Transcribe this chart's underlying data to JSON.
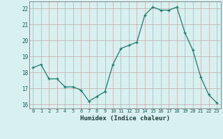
{
  "x": [
    0,
    1,
    2,
    3,
    4,
    5,
    6,
    7,
    8,
    9,
    10,
    11,
    12,
    13,
    14,
    15,
    16,
    17,
    18,
    19,
    20,
    21,
    22,
    23
  ],
  "y": [
    18.3,
    18.5,
    17.6,
    17.6,
    17.1,
    17.1,
    16.9,
    16.2,
    16.5,
    16.8,
    18.5,
    19.5,
    19.7,
    19.9,
    21.6,
    22.1,
    21.9,
    21.9,
    22.1,
    20.5,
    19.4,
    17.7,
    16.6,
    16.1
  ],
  "line_color": "#1a7a6e",
  "marker": "+",
  "marker_size": 3,
  "bg_color": "#d8f0f0",
  "grid_major_color": "#c8dede",
  "grid_minor_color": "#e0ecec",
  "xlabel": "Humidex (Indice chaleur)",
  "xlim": [
    -0.5,
    23.5
  ],
  "ylim": [
    15.75,
    22.45
  ],
  "yticks": [
    16,
    17,
    18,
    19,
    20,
    21,
    22
  ],
  "xticks": [
    0,
    1,
    2,
    3,
    4,
    5,
    6,
    7,
    8,
    9,
    10,
    11,
    12,
    13,
    14,
    15,
    16,
    17,
    18,
    19,
    20,
    21,
    22,
    23
  ]
}
